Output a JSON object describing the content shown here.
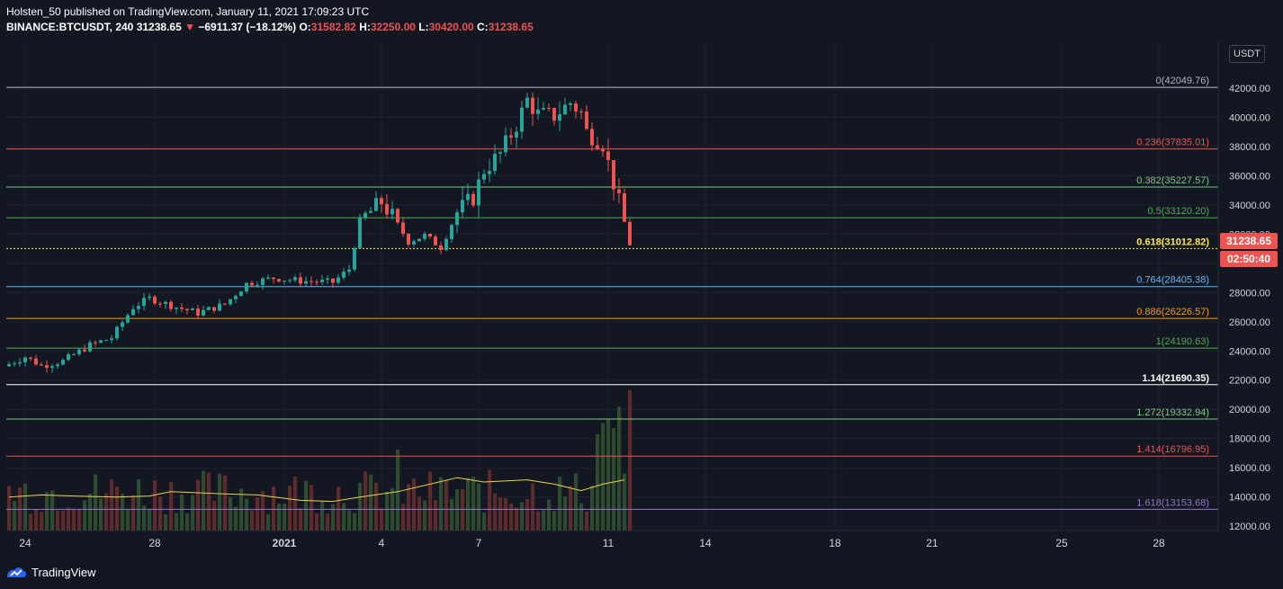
{
  "header": {
    "line1": "Holsten_50 published on TradingView.com, January 11, 2021 17:09:23 UTC",
    "symbol": "BINANCE:BTCUSDT, 240",
    "last": "31238.65",
    "change_arrow": "▼",
    "change": "−6911.37 (−18.12%)",
    "o_label": "O:",
    "o_value": "31582.82",
    "h_label": "H:",
    "h_value": "32250.00",
    "l_label": "L:",
    "l_value": "30420.00",
    "c_label": "C:",
    "c_value": "31238.65"
  },
  "price_axis": {
    "currency": "USDT",
    "last_price": "31238.65",
    "countdown": "02:50:40"
  },
  "footer": {
    "brand": "TradingView"
  },
  "colors": {
    "bg": "#131722",
    "up": "#26a69a",
    "down": "#ef5350",
    "grid": "#1e222d",
    "vol_up": "#2e4a30",
    "vol_down": "#5b2b2e",
    "ma": "#e8d44d"
  },
  "chart_data": {
    "type": "candlestick",
    "symbol": "BINANCE:BTCUSDT",
    "interval": "240",
    "ylim": [
      11700,
      45200
    ],
    "y_ticks": [
      12000,
      14000,
      16000,
      18000,
      20000,
      22000,
      24000,
      26000,
      28000,
      30000,
      32000,
      34000,
      36000,
      38000,
      40000,
      42000
    ],
    "x_labels": [
      {
        "label": "24",
        "bar": 3
      },
      {
        "label": "28",
        "bar": 27
      },
      {
        "label": "2021",
        "bar": 51
      },
      {
        "label": "4",
        "bar": 69
      },
      {
        "label": "7",
        "bar": 87
      },
      {
        "label": "11",
        "bar": 111
      },
      {
        "label": "14",
        "bar": 129
      },
      {
        "label": "18",
        "bar": 153
      },
      {
        "label": "21",
        "bar": 171
      },
      {
        "label": "25",
        "bar": 195
      },
      {
        "label": "28",
        "bar": 213
      }
    ],
    "total_bars": 222,
    "fib_levels": [
      {
        "ratio": "0",
        "price": 42049.76,
        "label": "0(42049.76)",
        "color": "#b2b5be"
      },
      {
        "ratio": "0.236",
        "price": 37835.01,
        "label": "0.236(37835.01)",
        "color": "#ef5350"
      },
      {
        "ratio": "0.382",
        "price": 35227.57,
        "label": "0.382(35227.57)",
        "color": "#81c784"
      },
      {
        "ratio": "0.5",
        "price": 33120.2,
        "label": "0.5(33120.20)",
        "color": "#4caf50"
      },
      {
        "ratio": "0.618",
        "price": 31012.82,
        "label": "0.618(31012.82)",
        "color": "#ffeb3b"
      },
      {
        "ratio": "0.764",
        "price": 28405.38,
        "label": "0.764(28405.38)",
        "color": "#64b5f6"
      },
      {
        "ratio": "0.886",
        "price": 26226.57,
        "label": "0.886(26226.57)",
        "color": "#ff9800"
      },
      {
        "ratio": "1",
        "price": 24190.63,
        "label": "1(24190.63)",
        "color": "#4caf50"
      },
      {
        "ratio": "1.14",
        "price": 21690.35,
        "label": "1.14(21690.35)",
        "color": "#ffffff"
      },
      {
        "ratio": "1.272",
        "price": 19332.94,
        "label": "1.272(19332.94)",
        "color": "#81c784"
      },
      {
        "ratio": "1.414",
        "price": 16796.95,
        "label": "1.414(16796.95)",
        "color": "#ef5350"
      },
      {
        "ratio": "1.618",
        "price": 13153.68,
        "label": "1.618(13153.68)",
        "color": "#9575cd"
      }
    ],
    "close_path": [
      [
        0,
        23100
      ],
      [
        3,
        23600
      ],
      [
        6,
        23000
      ],
      [
        10,
        23300
      ],
      [
        15,
        24400
      ],
      [
        19,
        24900
      ],
      [
        23,
        27000
      ],
      [
        26,
        27600
      ],
      [
        31,
        27000
      ],
      [
        35,
        26600
      ],
      [
        40,
        27200
      ],
      [
        44,
        28600
      ],
      [
        49,
        29000
      ],
      [
        54,
        28800
      ],
      [
        60,
        28700
      ],
      [
        63,
        29600
      ],
      [
        65,
        32900
      ],
      [
        69,
        34200
      ],
      [
        71,
        33200
      ],
      [
        74,
        31500
      ],
      [
        77,
        31900
      ],
      [
        80,
        31100
      ],
      [
        83,
        33500
      ],
      [
        86,
        34500
      ],
      [
        88,
        36400
      ],
      [
        91,
        37500
      ],
      [
        94,
        39500
      ],
      [
        96,
        41200
      ],
      [
        98,
        40200
      ],
      [
        101,
        40100
      ],
      [
        104,
        41000
      ],
      [
        106,
        40300
      ],
      [
        107,
        39000
      ],
      [
        110,
        38200
      ],
      [
        112,
        35500
      ],
      [
        114,
        32800
      ],
      [
        115,
        31238
      ]
    ],
    "ma_points": [
      [
        0,
        0.31
      ],
      [
        6,
        0.33
      ],
      [
        12,
        0.32
      ],
      [
        20,
        0.31
      ],
      [
        26,
        0.32
      ],
      [
        30,
        0.36
      ],
      [
        40,
        0.34
      ],
      [
        46,
        0.33
      ],
      [
        54,
        0.28
      ],
      [
        60,
        0.27
      ],
      [
        65,
        0.31
      ],
      [
        72,
        0.36
      ],
      [
        78,
        0.43
      ],
      [
        83,
        0.49
      ],
      [
        88,
        0.45
      ],
      [
        96,
        0.47
      ],
      [
        101,
        0.43
      ],
      [
        106,
        0.37
      ],
      [
        110,
        0.43
      ],
      [
        114,
        0.47
      ]
    ]
  }
}
